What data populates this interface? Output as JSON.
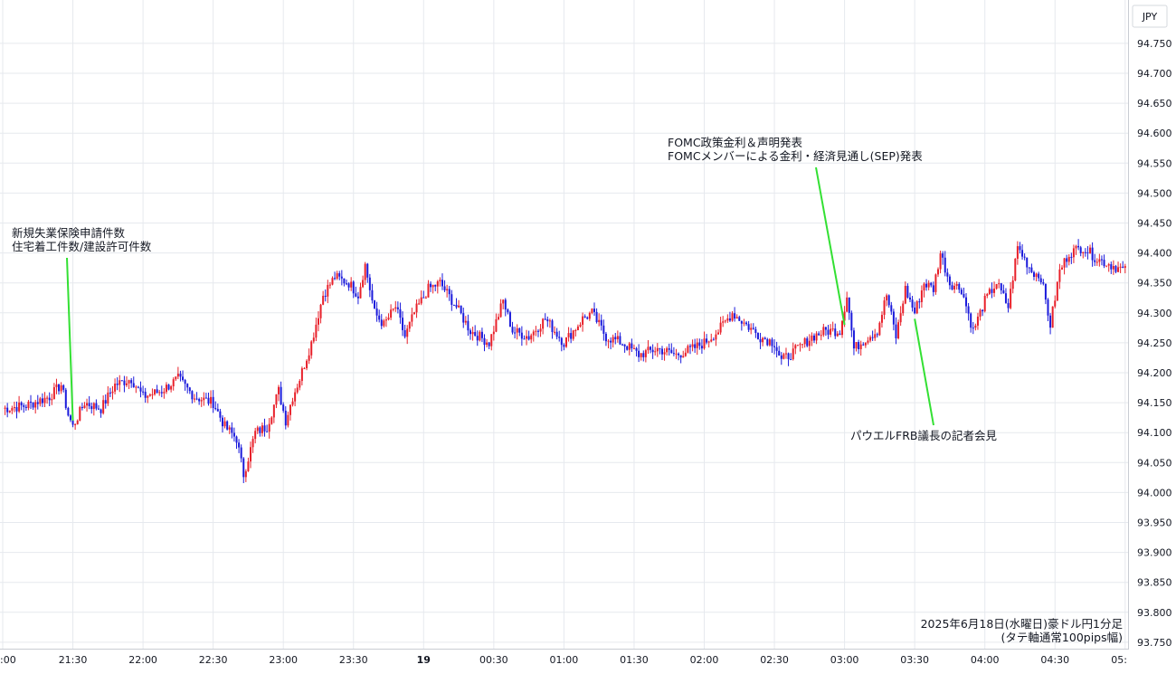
{
  "chart_data": {
    "type": "candlestick",
    "currency_label": "JPY",
    "caption": [
      "2025年6月18日(水曜日)豪ドル円1分足",
      "(タテ軸通常100pips幅)"
    ],
    "ylim": [
      93.74,
      94.78
    ],
    "y_ticks": [
      "94.750",
      "94.700",
      "94.650",
      "94.600",
      "94.550",
      "94.500",
      "94.450",
      "94.400",
      "94.350",
      "94.300",
      "94.250",
      "94.200",
      "94.150",
      "94.100",
      "94.050",
      "94.000",
      "93.950",
      "93.900",
      "93.850",
      "93.800",
      "93.750"
    ],
    "x_ticks": [
      ":00",
      "21:30",
      "22:00",
      "22:30",
      "23:00",
      "23:30",
      "19",
      "00:30",
      "01:00",
      "01:30",
      "02:00",
      "02:30",
      "03:00",
      "03:30",
      "04:00",
      "04:30",
      "05:"
    ],
    "bold_x_tick": "19",
    "grid": true,
    "colors": {
      "up": "#e8202a",
      "down": "#1a1adb",
      "annotation_line": "#33e033",
      "grid": "#e6e9ee",
      "axis_text": "#131722"
    },
    "annotations": [
      {
        "lines": [
          "新規失業保険申請件数",
          "住宅着工件数/建設許可件数"
        ],
        "time_index": 30,
        "price": 94.12
      },
      {
        "lines": [
          "FOMC政策金利＆声明発表",
          "FOMCメンバーによる金利・経済見通し(SEP)発表"
        ],
        "time_index": 360,
        "price": 94.28
      },
      {
        "lines": [
          "パウエルFRB議長の記者会見"
        ],
        "time_index": 390,
        "price": 94.29
      }
    ],
    "price_path": [
      [
        0,
        94.14
      ],
      [
        10,
        94.145
      ],
      [
        20,
        94.16
      ],
      [
        25,
        94.18
      ],
      [
        28,
        94.13
      ],
      [
        30,
        94.11
      ],
      [
        35,
        94.15
      ],
      [
        42,
        94.14
      ],
      [
        48,
        94.18
      ],
      [
        55,
        94.19
      ],
      [
        60,
        94.16
      ],
      [
        68,
        94.17
      ],
      [
        75,
        94.19
      ],
      [
        82,
        94.16
      ],
      [
        90,
        94.15
      ],
      [
        95,
        94.11
      ],
      [
        100,
        94.09
      ],
      [
        103,
        94.03
      ],
      [
        108,
        94.1
      ],
      [
        113,
        94.11
      ],
      [
        118,
        94.17
      ],
      [
        121,
        94.12
      ],
      [
        124,
        94.16
      ],
      [
        127,
        94.19
      ],
      [
        132,
        94.25
      ],
      [
        137,
        94.33
      ],
      [
        142,
        94.36
      ],
      [
        148,
        94.35
      ],
      [
        152,
        94.33
      ],
      [
        155,
        94.38
      ],
      [
        159,
        94.3
      ],
      [
        163,
        94.28
      ],
      [
        168,
        94.31
      ],
      [
        172,
        94.26
      ],
      [
        176,
        94.3
      ],
      [
        182,
        94.34
      ],
      [
        187,
        94.35
      ],
      [
        194,
        94.31
      ],
      [
        200,
        94.27
      ],
      [
        208,
        94.25
      ],
      [
        214,
        94.32
      ],
      [
        218,
        94.27
      ],
      [
        225,
        94.26
      ],
      [
        232,
        94.29
      ],
      [
        240,
        94.25
      ],
      [
        248,
        94.29
      ],
      [
        252,
        94.3
      ],
      [
        258,
        94.26
      ],
      [
        265,
        94.25
      ],
      [
        272,
        94.23
      ],
      [
        280,
        94.24
      ],
      [
        288,
        94.23
      ],
      [
        295,
        94.24
      ],
      [
        300,
        94.25
      ],
      [
        306,
        94.27
      ],
      [
        312,
        94.3
      ],
      [
        318,
        94.28
      ],
      [
        324,
        94.26
      ],
      [
        330,
        94.25
      ],
      [
        333,
        94.22
      ],
      [
        340,
        94.24
      ],
      [
        346,
        94.26
      ],
      [
        352,
        94.27
      ],
      [
        358,
        94.27
      ],
      [
        361,
        94.33
      ],
      [
        364,
        94.24
      ],
      [
        370,
        94.26
      ],
      [
        374,
        94.27
      ],
      [
        378,
        94.33
      ],
      [
        382,
        94.26
      ],
      [
        386,
        94.34
      ],
      [
        390,
        94.3
      ],
      [
        394,
        94.35
      ],
      [
        398,
        94.34
      ],
      [
        401,
        94.4
      ],
      [
        405,
        94.35
      ],
      [
        410,
        94.34
      ],
      [
        415,
        94.27
      ],
      [
        420,
        94.32
      ],
      [
        425,
        94.35
      ],
      [
        430,
        94.31
      ],
      [
        434,
        94.41
      ],
      [
        440,
        94.37
      ],
      [
        444,
        94.36
      ],
      [
        448,
        94.28
      ],
      [
        452,
        94.37
      ],
      [
        456,
        94.4
      ],
      [
        462,
        94.41
      ],
      [
        468,
        94.39
      ],
      [
        474,
        94.38
      ],
      [
        480,
        94.37
      ]
    ]
  }
}
